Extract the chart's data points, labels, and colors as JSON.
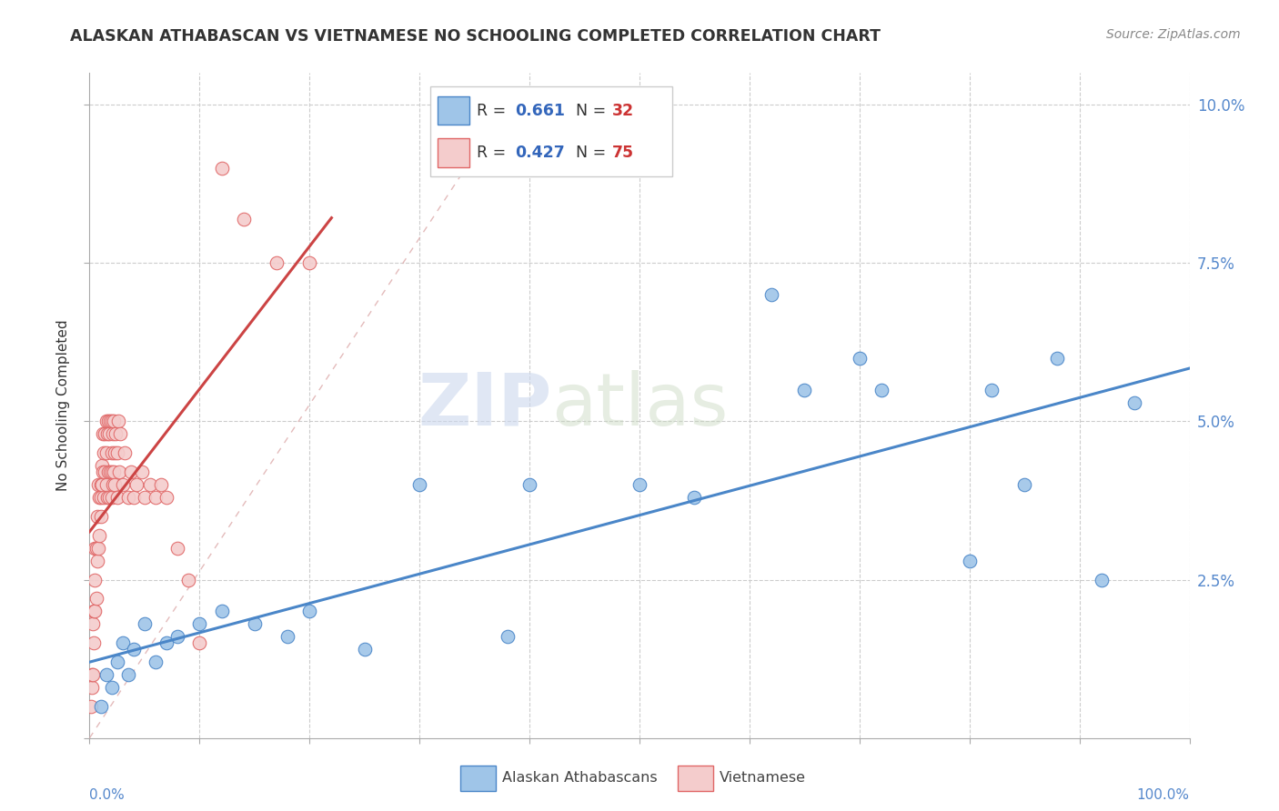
{
  "title": "ALASKAN ATHABASCAN VS VIETNAMESE NO SCHOOLING COMPLETED CORRELATION CHART",
  "source": "Source: ZipAtlas.com",
  "ylabel": "No Schooling Completed",
  "color_blue": "#9fc5e8",
  "color_pink": "#f4cccc",
  "color_blue_edge": "#4a86c8",
  "color_pink_edge": "#e06666",
  "color_blue_line": "#4a86c8",
  "color_pink_line": "#cc4444",
  "color_diag": "#ddbbbb",
  "blue_x": [
    0.01,
    0.015,
    0.02,
    0.025,
    0.03,
    0.035,
    0.04,
    0.05,
    0.06,
    0.07,
    0.08,
    0.1,
    0.12,
    0.15,
    0.18,
    0.2,
    0.25,
    0.3,
    0.38,
    0.4,
    0.5,
    0.55,
    0.62,
    0.65,
    0.7,
    0.72,
    0.8,
    0.82,
    0.85,
    0.88,
    0.92,
    0.95
  ],
  "blue_y": [
    0.005,
    0.01,
    0.008,
    0.012,
    0.015,
    0.01,
    0.014,
    0.018,
    0.012,
    0.015,
    0.016,
    0.018,
    0.02,
    0.018,
    0.016,
    0.02,
    0.014,
    0.04,
    0.016,
    0.04,
    0.04,
    0.038,
    0.07,
    0.055,
    0.06,
    0.055,
    0.028,
    0.055,
    0.04,
    0.06,
    0.025,
    0.053
  ],
  "pink_x": [
    0.001,
    0.002,
    0.002,
    0.003,
    0.003,
    0.004,
    0.004,
    0.005,
    0.005,
    0.005,
    0.006,
    0.006,
    0.007,
    0.007,
    0.008,
    0.008,
    0.009,
    0.009,
    0.01,
    0.01,
    0.01,
    0.011,
    0.011,
    0.012,
    0.012,
    0.013,
    0.013,
    0.014,
    0.014,
    0.015,
    0.015,
    0.015,
    0.016,
    0.016,
    0.017,
    0.017,
    0.018,
    0.018,
    0.019,
    0.019,
    0.02,
    0.02,
    0.02,
    0.02,
    0.021,
    0.021,
    0.022,
    0.022,
    0.023,
    0.023,
    0.024,
    0.025,
    0.025,
    0.026,
    0.027,
    0.028,
    0.03,
    0.032,
    0.035,
    0.038,
    0.04,
    0.043,
    0.048,
    0.05,
    0.055,
    0.06,
    0.065,
    0.07,
    0.08,
    0.09,
    0.1,
    0.12,
    0.14,
    0.17,
    0.2
  ],
  "pink_y": [
    0.005,
    0.008,
    0.01,
    0.01,
    0.018,
    0.015,
    0.02,
    0.02,
    0.025,
    0.03,
    0.022,
    0.03,
    0.028,
    0.035,
    0.03,
    0.04,
    0.032,
    0.038,
    0.035,
    0.04,
    0.038,
    0.043,
    0.04,
    0.042,
    0.048,
    0.038,
    0.045,
    0.042,
    0.048,
    0.04,
    0.045,
    0.05,
    0.038,
    0.048,
    0.042,
    0.05,
    0.038,
    0.048,
    0.042,
    0.05,
    0.038,
    0.042,
    0.045,
    0.05,
    0.04,
    0.048,
    0.042,
    0.05,
    0.04,
    0.045,
    0.048,
    0.038,
    0.045,
    0.05,
    0.042,
    0.048,
    0.04,
    0.045,
    0.038,
    0.042,
    0.038,
    0.04,
    0.042,
    0.038,
    0.04,
    0.038,
    0.04,
    0.038,
    0.03,
    0.025,
    0.015,
    0.09,
    0.082,
    0.075,
    0.075
  ]
}
